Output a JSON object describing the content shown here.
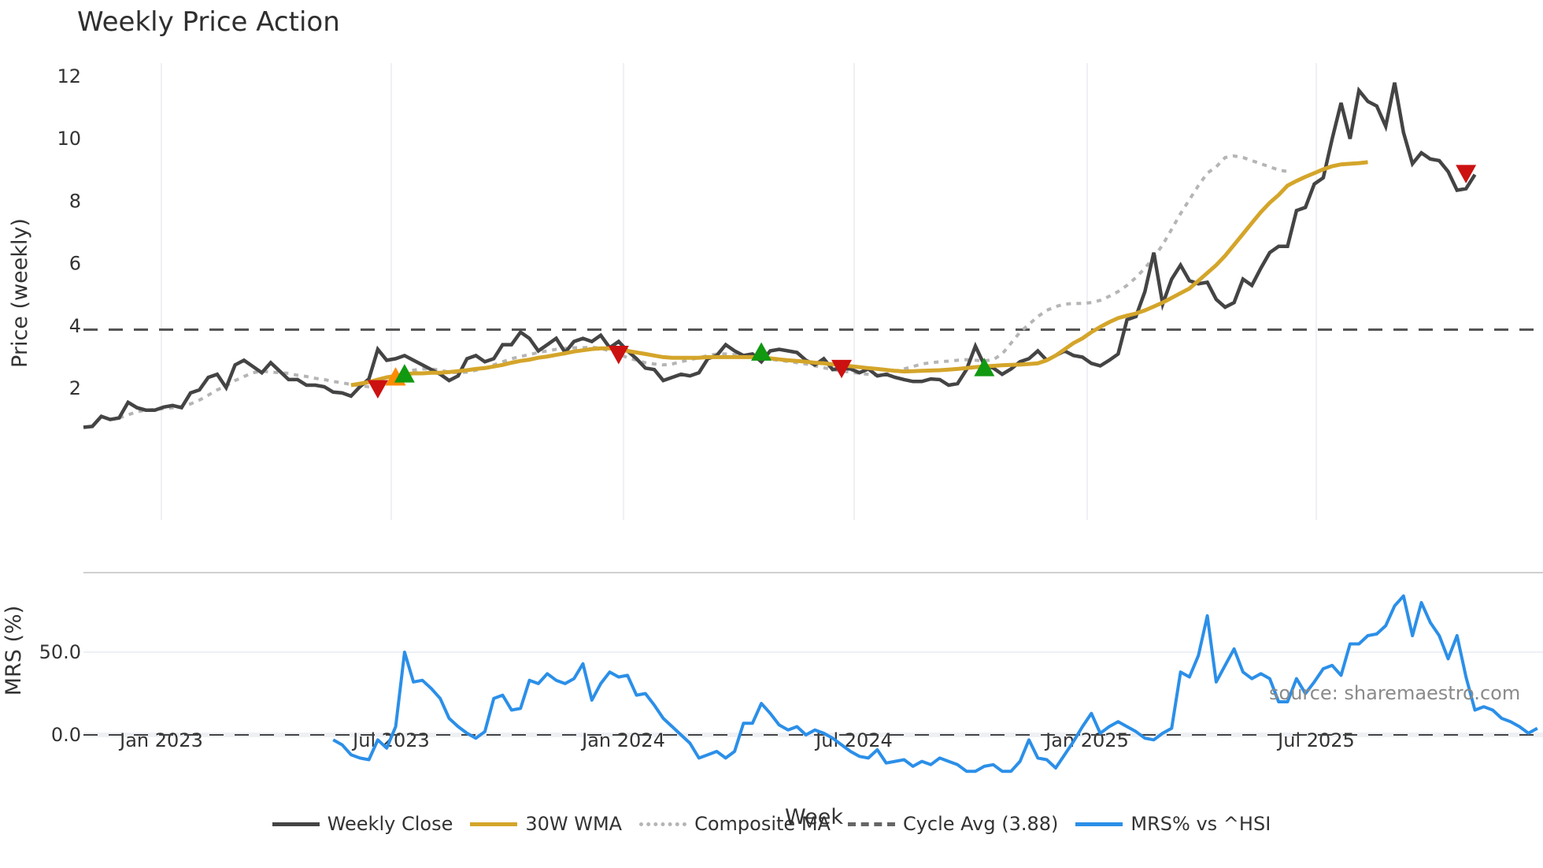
{
  "title": "Weekly Price Action",
  "source_text": "source: sharemaestro.com",
  "legend": [
    {
      "label": "Weekly Close",
      "color": "#444444",
      "style": "solid"
    },
    {
      "label": "30W WMA",
      "color": "#d4a52a",
      "style": "solid"
    },
    {
      "label": "Composite MA",
      "color": "#b5b5b5",
      "style": "dotted"
    },
    {
      "label": "Cycle Avg (3.88)",
      "color": "#555555",
      "style": "dashed"
    },
    {
      "label": "MRS% vs ^HSI",
      "color": "#2b8fe8",
      "style": "solid"
    }
  ],
  "chart_data": [
    {
      "type": "line",
      "title": "Weekly Price Action",
      "xlabel": "Week",
      "ylabel": "Price (weekly)",
      "x_ticks": [
        "Jan 2023",
        "Jul 2023",
        "Jan 2024",
        "Jul 2024",
        "Jan 2025",
        "Jul 2025"
      ],
      "y_ticks": [
        2,
        4,
        6,
        8,
        10,
        12
      ],
      "ylim": [
        0.5,
        12.4
      ],
      "grid": true,
      "legend_position": "bottom",
      "start_week": "2022-11-14",
      "series": [
        {
          "name": "Weekly Close",
          "color": "#444444",
          "start": 0,
          "values": [
            0.75,
            0.78,
            1.1,
            1.0,
            1.05,
            1.55,
            1.38,
            1.3,
            1.3,
            1.4,
            1.45,
            1.38,
            1.85,
            1.95,
            2.35,
            2.45,
            2.02,
            2.75,
            2.9,
            2.7,
            2.5,
            2.82,
            2.55,
            2.28,
            2.28,
            2.1,
            2.1,
            2.05,
            1.88,
            1.85,
            1.75,
            2.05,
            2.3,
            3.25,
            2.9,
            2.95,
            3.05,
            2.9,
            2.75,
            2.6,
            2.45,
            2.25,
            2.4,
            2.95,
            3.05,
            2.85,
            2.95,
            3.4,
            3.4,
            3.8,
            3.6,
            3.2,
            3.4,
            3.6,
            3.15,
            3.5,
            3.6,
            3.5,
            3.7,
            3.3,
            3.5,
            3.2,
            2.95,
            2.65,
            2.6,
            2.25,
            2.35,
            2.45,
            2.4,
            2.5,
            2.95,
            3.05,
            3.4,
            3.2,
            3.05,
            3.1,
            2.85,
            3.2,
            3.25,
            3.2,
            3.15,
            2.9,
            2.75,
            2.95,
            2.6,
            2.65,
            2.62,
            2.5,
            2.62,
            2.4,
            2.45,
            2.35,
            2.28,
            2.22,
            2.22,
            2.3,
            2.28,
            2.1,
            2.15,
            2.6,
            3.35,
            2.75,
            2.65,
            2.45,
            2.62,
            2.85,
            2.95,
            3.2,
            2.9,
            3.05,
            3.2,
            3.05,
            3.0,
            2.8,
            2.72,
            2.9,
            3.1,
            4.2,
            4.3,
            5.1,
            6.35,
            4.7,
            5.5,
            5.95,
            5.45,
            5.35,
            5.4,
            4.85,
            4.6,
            4.75,
            5.5,
            5.3,
            5.85,
            6.35,
            6.55,
            6.55,
            7.7,
            7.8,
            8.55,
            8.75,
            10.0,
            11.15,
            10.0,
            11.55,
            11.2,
            11.05,
            10.4,
            11.8,
            10.2,
            9.2,
            9.55,
            9.35,
            9.3,
            8.95,
            8.35,
            8.4,
            8.85
          ]
        },
        {
          "name": "30W WMA",
          "color": "#d4a52a",
          "start": 30,
          "values": [
            2.1,
            2.15,
            2.2,
            2.28,
            2.35,
            2.4,
            2.45,
            2.48,
            2.48,
            2.5,
            2.5,
            2.52,
            2.55,
            2.58,
            2.62,
            2.65,
            2.7,
            2.75,
            2.82,
            2.88,
            2.92,
            2.98,
            3.02,
            3.07,
            3.12,
            3.18,
            3.22,
            3.26,
            3.28,
            3.28,
            3.25,
            3.2,
            3.15,
            3.1,
            3.05,
            3.0,
            2.98,
            2.98,
            2.98,
            2.98,
            3.0,
            3.0,
            3.0,
            3.0,
            3.0,
            3.0,
            2.98,
            2.96,
            2.93,
            2.9,
            2.88,
            2.85,
            2.82,
            2.8,
            2.77,
            2.74,
            2.71,
            2.68,
            2.65,
            2.62,
            2.59,
            2.56,
            2.54,
            2.55,
            2.56,
            2.57,
            2.58,
            2.6,
            2.62,
            2.65,
            2.68,
            2.7,
            2.72,
            2.74,
            2.75,
            2.76,
            2.78,
            2.8,
            2.9,
            3.05,
            3.25,
            3.45,
            3.6,
            3.8,
            3.97,
            4.12,
            4.25,
            4.33,
            4.4,
            4.5,
            4.62,
            4.75,
            4.9,
            5.05,
            5.2,
            5.45,
            5.7,
            5.95,
            6.25,
            6.6,
            6.95,
            7.3,
            7.65,
            7.95,
            8.2,
            8.5,
            8.65,
            8.78,
            8.9,
            9.02,
            9.12,
            9.18,
            9.2,
            9.22,
            9.25
          ]
        },
        {
          "name": "Composite MA",
          "color": "#b5b5b5",
          "start": 4,
          "values": [
            1.05,
            1.15,
            1.25,
            1.3,
            1.32,
            1.35,
            1.38,
            1.42,
            1.5,
            1.62,
            1.78,
            1.95,
            2.08,
            2.25,
            2.38,
            2.5,
            2.55,
            2.52,
            2.5,
            2.48,
            2.42,
            2.38,
            2.32,
            2.28,
            2.22,
            2.18,
            2.12,
            2.08,
            2.05,
            2.08,
            2.2,
            2.35,
            2.48,
            2.58,
            2.62,
            2.62,
            2.58,
            2.52,
            2.5,
            2.52,
            2.58,
            2.65,
            2.75,
            2.85,
            2.95,
            3.02,
            3.08,
            3.15,
            3.2,
            3.25,
            3.28,
            3.3,
            3.3,
            3.32,
            3.28,
            3.2,
            3.1,
            2.98,
            2.9,
            2.82,
            2.78,
            2.75,
            2.78,
            2.85,
            2.92,
            2.98,
            3.05,
            3.1,
            3.1,
            3.08,
            3.05,
            3.0,
            2.96,
            2.93,
            2.9,
            2.86,
            2.82,
            2.78,
            2.72,
            2.66,
            2.6,
            2.55,
            2.52,
            2.48,
            2.45,
            2.42,
            2.45,
            2.55,
            2.62,
            2.7,
            2.78,
            2.82,
            2.85,
            2.87,
            2.9,
            2.92,
            2.9,
            2.88,
            2.92,
            3.1,
            3.45,
            3.8,
            4.05,
            4.3,
            4.5,
            4.62,
            4.7,
            4.72,
            4.72,
            4.75,
            4.82,
            4.95,
            5.1,
            5.3,
            5.55,
            5.85,
            6.2,
            6.6,
            7.1,
            7.6,
            8.05,
            8.5,
            8.9,
            9.1,
            9.4,
            9.45,
            9.4,
            9.3,
            9.2,
            9.1,
            9.0,
            8.95
          ]
        },
        {
          "name": "Cycle Avg (3.88)",
          "color": "#555555",
          "constant": 3.88
        }
      ],
      "markers": [
        {
          "week": 33,
          "value": 2.0,
          "shape": "triangle-down",
          "color": "#cc1111"
        },
        {
          "week": 35,
          "value": 2.35,
          "shape": "triangle-up",
          "color": "#ff8c00"
        },
        {
          "week": 36,
          "value": 2.45,
          "shape": "triangle-up",
          "color": "#119911"
        },
        {
          "week": 60,
          "value": 3.1,
          "shape": "triangle-down",
          "color": "#cc1111"
        },
        {
          "week": 76,
          "value": 3.15,
          "shape": "triangle-up",
          "color": "#119911"
        },
        {
          "week": 85,
          "value": 2.65,
          "shape": "triangle-down",
          "color": "#cc1111"
        },
        {
          "week": 101,
          "value": 2.65,
          "shape": "triangle-up",
          "color": "#119911"
        },
        {
          "week": 155,
          "value": 8.9,
          "shape": "triangle-down",
          "color": "#cc1111"
        }
      ]
    },
    {
      "type": "line",
      "ylabel": "MRS (%)",
      "y_ticks": [
        "0.0",
        "50.0"
      ],
      "ylim": [
        -35,
        90
      ],
      "reference_line": 0,
      "series": [
        {
          "name": "MRS% vs ^HSI",
          "color": "#2b8fe8",
          "start": 28,
          "values": [
            -3,
            -6,
            -12,
            -14,
            -15,
            -3,
            -8,
            5,
            50,
            32,
            33,
            28,
            22,
            10,
            5,
            1,
            -2,
            2,
            22,
            24,
            15,
            16,
            33,
            31,
            37,
            33,
            31,
            34,
            43,
            21,
            31,
            38,
            35,
            36,
            24,
            25,
            18,
            10,
            5,
            0,
            -5,
            -14,
            -12,
            -10,
            -14,
            -10,
            7,
            7,
            19,
            13,
            6,
            3,
            5,
            0,
            3,
            1,
            -2,
            -6,
            -10,
            -13,
            -14,
            -9,
            -17,
            -16,
            -15,
            -19,
            -16,
            -18,
            -14,
            -16,
            -18,
            -22,
            -22,
            -19,
            -18,
            -22,
            -22,
            -16,
            -3,
            -14,
            -15,
            -20,
            -12,
            -4,
            5,
            13,
            1,
            5,
            8,
            5,
            2,
            -2,
            -3,
            1,
            4,
            38,
            35,
            48,
            72,
            32,
            42,
            52,
            38,
            34,
            37,
            34,
            20,
            20,
            34,
            25,
            32,
            40,
            42,
            36,
            55,
            55,
            60,
            61,
            66,
            78,
            84,
            60,
            80,
            68,
            60,
            46,
            60,
            35,
            15,
            17,
            15,
            10,
            8,
            5,
            1,
            4
          ]
        }
      ]
    }
  ],
  "axes": {
    "price": {
      "ylabel": "Price (weekly)",
      "ticks": [
        "2",
        "4",
        "6",
        "8",
        "10",
        "12"
      ]
    },
    "mrs": {
      "ylabel": "MRS (%)",
      "ticks": [
        "0.0",
        "50.0"
      ]
    },
    "x": {
      "xlabel": "Week",
      "ticks": [
        "Jan 2023",
        "Jul 2023",
        "Jan 2024",
        "Jul 2024",
        "Jan 2025",
        "Jul 2025"
      ]
    }
  }
}
